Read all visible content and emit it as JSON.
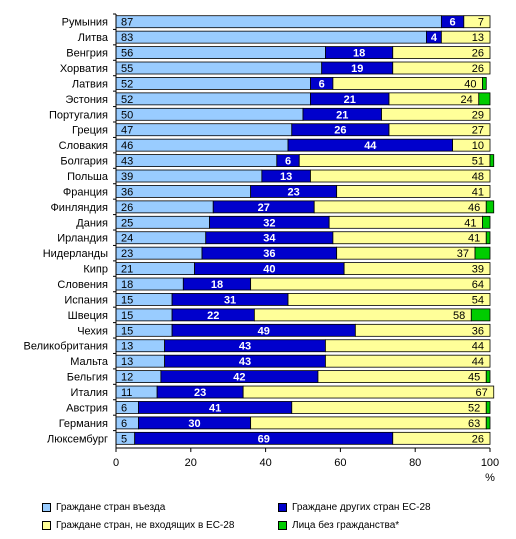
{
  "chart_data": {
    "type": "bar",
    "orientation": "horizontal",
    "stacked": true,
    "categories": [
      "Румыния",
      "Литва",
      "Венгрия",
      "Хорватия",
      "Латвия",
      "Эстония",
      "Португалия",
      "Греция",
      "Словакия",
      "Болгария",
      "Польша",
      "Франция",
      "Финляндия",
      "Дания",
      "Ирландия",
      "Нидерланды",
      "Кипр",
      "Словения",
      "Испания",
      "Швеция",
      "Чехия",
      "Великобритания",
      "Мальта",
      "Бельгия",
      "Италия",
      "Австрия",
      "Германия",
      "Люксембург"
    ],
    "series": [
      {
        "name": "Граждане стран въезда",
        "color": "#99ccff",
        "label_color": "#000000",
        "values": [
          87,
          83,
          56,
          55,
          52,
          52,
          50,
          47,
          46,
          43,
          39,
          36,
          26,
          25,
          24,
          23,
          21,
          18,
          15,
          15,
          15,
          13,
          13,
          12,
          11,
          6,
          6,
          5
        ]
      },
      {
        "name": "Граждане других стран ЕС-28",
        "color": "#0000cc",
        "label_color": "#ffffff",
        "values": [
          6,
          4,
          18,
          19,
          6,
          21,
          21,
          26,
          44,
          6,
          13,
          23,
          27,
          32,
          34,
          36,
          40,
          18,
          31,
          22,
          49,
          43,
          43,
          42,
          23,
          41,
          30,
          69
        ]
      },
      {
        "name": "Граждане стран, не входящих в ЕС-28",
        "color": "#ffff99",
        "label_color": "#000000",
        "values": [
          7,
          13,
          26,
          26,
          40,
          24,
          29,
          27,
          10,
          51,
          48,
          41,
          46,
          41,
          41,
          37,
          39,
          64,
          54,
          58,
          36,
          44,
          44,
          45,
          67,
          52,
          63,
          26
        ]
      },
      {
        "name": "Лица без гражданства*",
        "color": "#00cc00",
        "label_color": "#000000",
        "values": [
          0,
          0,
          0,
          0,
          1,
          3,
          0,
          0,
          0,
          1,
          0,
          0,
          2,
          2,
          1,
          4,
          0,
          0,
          0,
          5,
          0,
          0,
          0,
          1,
          0,
          1,
          1,
          0
        ]
      }
    ],
    "xlim": [
      0,
      100
    ],
    "xticks": [
      0,
      20,
      40,
      60,
      80,
      100
    ],
    "xunit": "%",
    "legend_position": "bottom",
    "grid": false
  }
}
